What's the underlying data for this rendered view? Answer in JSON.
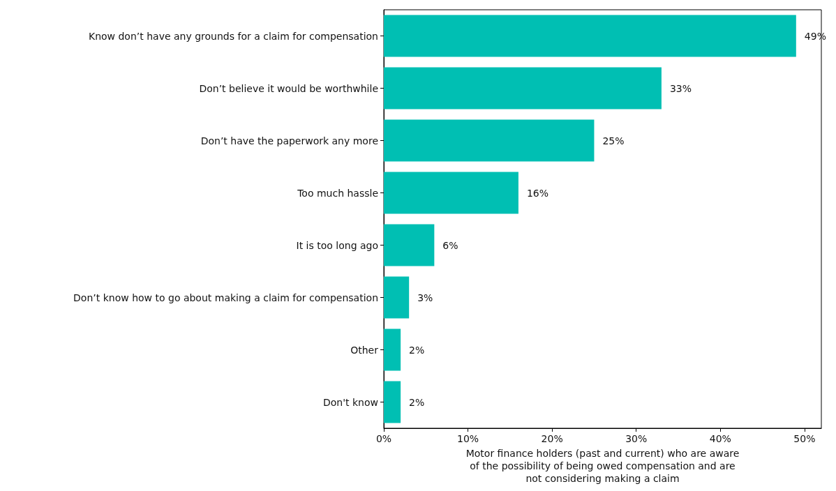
{
  "chart_data": {
    "type": "bar",
    "orientation": "horizontal",
    "categories": [
      "Know don’t have any grounds for a claim for compensation",
      "Don’t believe it would be worthwhile",
      "Don’t have the paperwork any more",
      "Too much hassle",
      "It is too long ago",
      "Don’t know how to go about making a claim for compensation",
      "Other",
      "Don't know"
    ],
    "values": [
      49,
      33,
      25,
      16,
      6,
      3,
      2,
      2
    ],
    "value_labels": [
      "49%",
      "33%",
      "25%",
      "16%",
      "6%",
      "3%",
      "2%",
      "2%"
    ],
    "color": "#00bfb3",
    "xlabel": "Motor finance holders (past and current) who are aware\nof the possibility of being owed compensation and are\nnot considering making a claim",
    "xlim": [
      0,
      52
    ],
    "xticks": [
      {
        "value": 0,
        "label": "0%"
      },
      {
        "value": 10,
        "label": "10%"
      },
      {
        "value": 20,
        "label": "20%"
      },
      {
        "value": 30,
        "label": "30%"
      },
      {
        "value": 40,
        "label": "40%"
      },
      {
        "value": 50,
        "label": "50%"
      }
    ],
    "grid": false
  }
}
